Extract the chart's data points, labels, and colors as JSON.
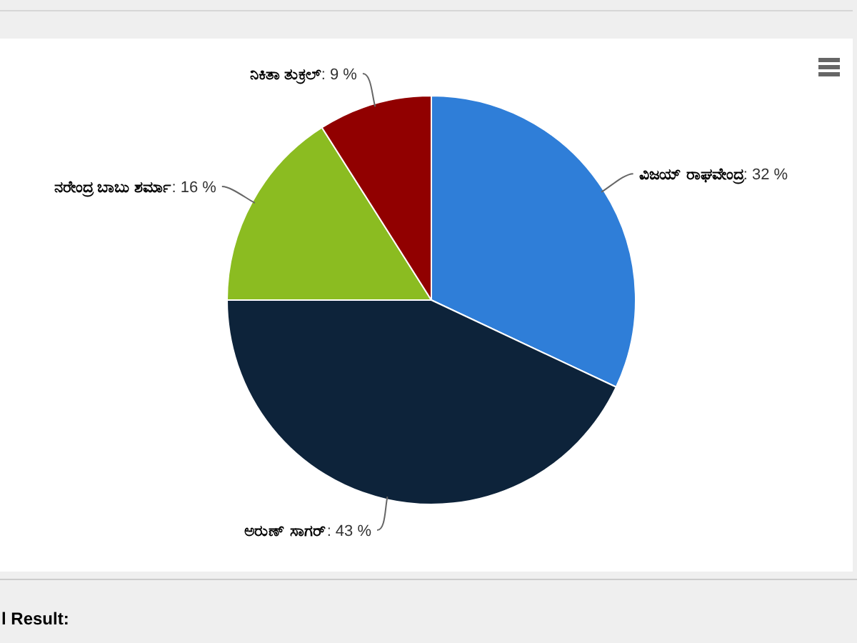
{
  "chart_data": {
    "type": "pie",
    "categories": [
      "ವಿಜಯ್ ರಾಘವೇಂದ್ರ",
      "ಅರುಣ್ ಸಾಗರ್",
      "ನರೇಂದ್ರ ಬಾಬು ಶರ್ಮಾ",
      "ನಿಕಿತಾ ತುಕ್ರಲ್"
    ],
    "values": [
      32,
      43,
      16,
      9
    ],
    "colors": [
      "#2f7ed8",
      "#0d233a",
      "#8bbc21",
      "#910000"
    ],
    "value_labels": [
      ": 32 %",
      ": 43 %",
      ": 16 %",
      ": 9 %"
    ],
    "annotations": [
      "l Result:"
    ]
  }
}
